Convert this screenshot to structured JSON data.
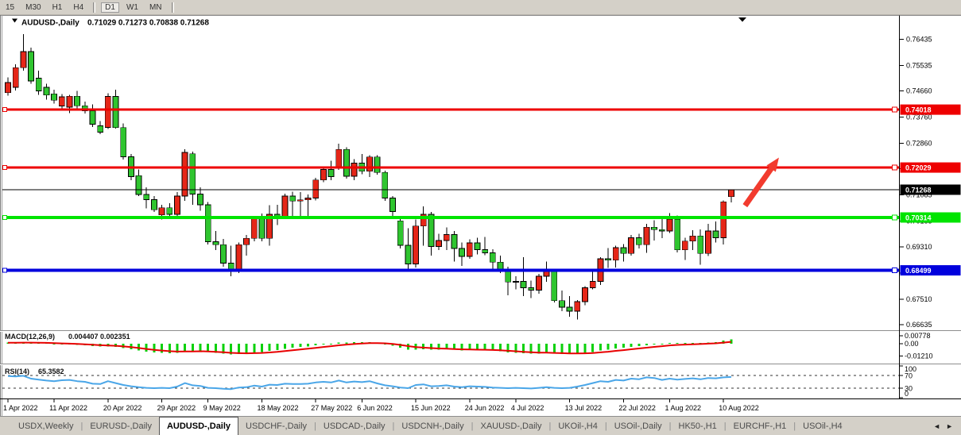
{
  "toolbar": {
    "timeframes": [
      {
        "label": "15",
        "active": false
      },
      {
        "label": "M30",
        "active": false
      },
      {
        "label": "H1",
        "active": false
      },
      {
        "label": "H4",
        "active": false
      },
      {
        "label": "D1",
        "active": true
      },
      {
        "label": "W1",
        "active": false
      },
      {
        "label": "MN",
        "active": false
      }
    ],
    "separators_after": [
      "H4",
      "MN"
    ]
  },
  "window": {
    "title_symbol": "AUDUSD-,Daily",
    "ohlc": "0.71029 0.71273 0.70838 0.71268"
  },
  "icons": {
    "chart_dropdown": "triangle-down",
    "autoscroll_marker": "triangle-down",
    "annotation": "arrow-up-right"
  },
  "chart_data": {
    "type": "candlestick",
    "symbol": "AUDUSD-",
    "timeframe": "Daily",
    "title": "AUDUSD-,Daily 0.71029 0.71273 0.70838 0.71268",
    "colors": {
      "bull": "#e52618",
      "bear": "#2fc52f",
      "wick": "#000000",
      "macd_hist": "#0bd10b",
      "macd_signal": "#e80000",
      "rsi_line": "#4aa6e8",
      "background": "#ffffff"
    },
    "y_axis": {
      "max": 0.7721,
      "min": 0.6647,
      "ticks": [
        0.76435,
        0.75535,
        0.7466,
        0.7376,
        0.7286,
        0.71985,
        0.71085,
        0.70185,
        0.6931,
        0.6841,
        0.6751,
        0.66635
      ]
    },
    "x_axis": {
      "tick_indices": [
        0,
        6,
        13,
        20,
        26,
        33,
        40,
        46,
        53,
        60,
        66,
        73,
        80,
        86,
        93
      ],
      "tick_labels": [
        "1 Apr 2022",
        "11 Apr 2022",
        "20 Apr 2022",
        "29 Apr 2022",
        "9 May 2022",
        "18 May 2022",
        "27 May 2022",
        "6 Jun 2022",
        "15 Jun 2022",
        "24 Jun 2022",
        "4 Jul 2022",
        "13 Jul 2022",
        "22 Jul 2022",
        "1 Aug 2022",
        "10 Aug 2022"
      ]
    },
    "hlines": [
      {
        "price": 0.74018,
        "label": "0.74018",
        "color": "#ee0000",
        "width": 3,
        "markers": true
      },
      {
        "price": 0.72029,
        "label": "0.72029",
        "color": "#ee0000",
        "width": 3,
        "markers": true
      },
      {
        "price": 0.71268,
        "label": "0.71268",
        "color": "#000000",
        "width": 1,
        "markers": false,
        "is_current_price": true
      },
      {
        "price": 0.70314,
        "label": "0.70314",
        "color": "#00e400",
        "width": 4,
        "markers": true
      },
      {
        "price": 0.68499,
        "label": "0.68499",
        "color": "#0000dd",
        "width": 4,
        "markers": true
      }
    ],
    "candles": [
      [
        0.746,
        0.7512,
        0.745,
        0.7495
      ],
      [
        0.7478,
        0.7558,
        0.7468,
        0.7546
      ],
      [
        0.7546,
        0.7661,
        0.7536,
        0.7601
      ],
      [
        0.7601,
        0.7615,
        0.749,
        0.75
      ],
      [
        0.751,
        0.7536,
        0.7452,
        0.7466
      ],
      [
        0.7478,
        0.749,
        0.7436,
        0.7452
      ],
      [
        0.7456,
        0.747,
        0.7423,
        0.7434
      ],
      [
        0.7414,
        0.7455,
        0.74,
        0.7446
      ],
      [
        0.741,
        0.7453,
        0.739,
        0.7448
      ],
      [
        0.7448,
        0.7466,
        0.7398,
        0.7415
      ],
      [
        0.7415,
        0.743,
        0.7388,
        0.7398
      ],
      [
        0.7398,
        0.742,
        0.7342,
        0.7352
      ],
      [
        0.7346,
        0.7362,
        0.7318,
        0.7324
      ],
      [
        0.7341,
        0.7458,
        0.7335,
        0.7447
      ],
      [
        0.7447,
        0.747,
        0.7336,
        0.734
      ],
      [
        0.734,
        0.7355,
        0.723,
        0.724
      ],
      [
        0.724,
        0.725,
        0.716,
        0.7172
      ],
      [
        0.7175,
        0.7196,
        0.7105,
        0.711
      ],
      [
        0.711,
        0.7135,
        0.7063,
        0.7093
      ],
      [
        0.7093,
        0.7105,
        0.705,
        0.7058
      ],
      [
        0.704,
        0.7075,
        0.7025,
        0.7065
      ],
      [
        0.7065,
        0.708,
        0.7028,
        0.7042
      ],
      [
        0.7042,
        0.7118,
        0.7035,
        0.7105
      ],
      [
        0.7105,
        0.7266,
        0.7088,
        0.7255
      ],
      [
        0.725,
        0.7258,
        0.7075,
        0.7112
      ],
      [
        0.7112,
        0.7135,
        0.7055,
        0.7075
      ],
      [
        0.7075,
        0.7085,
        0.6938,
        0.6948
      ],
      [
        0.6948,
        0.6985,
        0.692,
        0.6938
      ],
      [
        0.6938,
        0.6958,
        0.6862,
        0.6875
      ],
      [
        0.6875,
        0.6935,
        0.6829,
        0.6855
      ],
      [
        0.6855,
        0.6945,
        0.684,
        0.6938
      ],
      [
        0.6938,
        0.6972,
        0.69,
        0.696
      ],
      [
        0.696,
        0.7035,
        0.695,
        0.7028
      ],
      [
        0.7028,
        0.7045,
        0.695,
        0.696
      ],
      [
        0.696,
        0.7073,
        0.6934,
        0.7042
      ],
      [
        0.7042,
        0.7075,
        0.7005,
        0.7035
      ],
      [
        0.7035,
        0.7113,
        0.7028,
        0.7105
      ],
      [
        0.7105,
        0.712,
        0.7033,
        0.7088
      ],
      [
        0.7088,
        0.7118,
        0.7037,
        0.7092
      ],
      [
        0.7092,
        0.711,
        0.7035,
        0.7098
      ],
      [
        0.7098,
        0.7168,
        0.709,
        0.716
      ],
      [
        0.716,
        0.7205,
        0.7152,
        0.7196
      ],
      [
        0.7196,
        0.7226,
        0.716,
        0.7172
      ],
      [
        0.7203,
        0.7285,
        0.7195,
        0.7265
      ],
      [
        0.7265,
        0.7272,
        0.7165,
        0.7173
      ],
      [
        0.7173,
        0.7232,
        0.716,
        0.7218
      ],
      [
        0.7218,
        0.725,
        0.718,
        0.719
      ],
      [
        0.719,
        0.7246,
        0.717,
        0.7239
      ],
      [
        0.7239,
        0.7245,
        0.7178,
        0.7186
      ],
      [
        0.7186,
        0.7192,
        0.7088,
        0.7098
      ],
      [
        0.7098,
        0.7105,
        0.7035,
        0.7052
      ],
      [
        0.702,
        0.7035,
        0.6925,
        0.6936
      ],
      [
        0.6936,
        0.6995,
        0.685,
        0.6872
      ],
      [
        0.6872,
        0.7025,
        0.686,
        0.7002
      ],
      [
        0.7002,
        0.7069,
        0.6935,
        0.7042
      ],
      [
        0.7042,
        0.705,
        0.69,
        0.6932
      ],
      [
        0.6932,
        0.6975,
        0.692,
        0.6952
      ],
      [
        0.6952,
        0.6997,
        0.692,
        0.6973
      ],
      [
        0.6973,
        0.6985,
        0.688,
        0.6925
      ],
      [
        0.6925,
        0.6945,
        0.6865,
        0.6898
      ],
      [
        0.6898,
        0.6957,
        0.689,
        0.6944
      ],
      [
        0.6944,
        0.6962,
        0.6905,
        0.6921
      ],
      [
        0.6921,
        0.6965,
        0.6902,
        0.691
      ],
      [
        0.691,
        0.6922,
        0.685,
        0.6878
      ],
      [
        0.6878,
        0.69,
        0.6841,
        0.685
      ],
      [
        0.685,
        0.6862,
        0.6764,
        0.681
      ],
      [
        0.681,
        0.683,
        0.6785,
        0.6812
      ],
      [
        0.6812,
        0.6895,
        0.6762,
        0.679
      ],
      [
        0.679,
        0.6815,
        0.6755,
        0.6782
      ],
      [
        0.6782,
        0.6838,
        0.677,
        0.683
      ],
      [
        0.683,
        0.688,
        0.681,
        0.6848
      ],
      [
        0.6848,
        0.6852,
        0.674,
        0.6746
      ],
      [
        0.6746,
        0.678,
        0.671,
        0.6723
      ],
      [
        0.6723,
        0.6762,
        0.669,
        0.671
      ],
      [
        0.671,
        0.6748,
        0.6681,
        0.6742
      ],
      [
        0.6742,
        0.6795,
        0.673,
        0.679
      ],
      [
        0.679,
        0.685,
        0.6785,
        0.6812
      ],
      [
        0.6812,
        0.6895,
        0.68,
        0.689
      ],
      [
        0.689,
        0.6927,
        0.6858,
        0.6885
      ],
      [
        0.6885,
        0.6935,
        0.686,
        0.6928
      ],
      [
        0.6928,
        0.694,
        0.688,
        0.6908
      ],
      [
        0.6908,
        0.6972,
        0.69,
        0.6962
      ],
      [
        0.6962,
        0.6975,
        0.6925,
        0.6938
      ],
      [
        0.6938,
        0.701,
        0.691,
        0.6998
      ],
      [
        0.6998,
        0.7022,
        0.6952,
        0.699
      ],
      [
        0.699,
        0.7032,
        0.696,
        0.6985
      ],
      [
        0.6985,
        0.7047,
        0.6978,
        0.7025
      ],
      [
        0.7025,
        0.7038,
        0.6911,
        0.692
      ],
      [
        0.692,
        0.6962,
        0.6886,
        0.695
      ],
      [
        0.695,
        0.6988,
        0.692,
        0.6968
      ],
      [
        0.6968,
        0.699,
        0.6869,
        0.6908
      ],
      [
        0.6908,
        0.7009,
        0.6899,
        0.6985
      ],
      [
        0.6985,
        0.7018,
        0.6945,
        0.6962
      ],
      [
        0.6962,
        0.709,
        0.6938,
        0.7085
      ],
      [
        0.71029,
        0.71273,
        0.70838,
        0.71268
      ]
    ],
    "macd": {
      "name": "MACD(12,26,9)",
      "display": "0.004407 0.002351",
      "value": 0.004407,
      "signal_value": 0.002351,
      "axis_ticks": [
        0.00778,
        0.0,
        -0.0121
      ],
      "max": 0.0109,
      "min": -0.0179,
      "signal_smoothing": 0.25,
      "histogram": [
        0.001,
        0.0011,
        0.0013,
        0.0011,
        0.0007,
        0.0003,
        -0.0002,
        -0.0005,
        -0.0007,
        -0.001,
        -0.0017,
        -0.0023,
        -0.0028,
        -0.0026,
        -0.003,
        -0.0043,
        -0.0056,
        -0.0068,
        -0.0078,
        -0.0085,
        -0.0089,
        -0.0092,
        -0.0089,
        -0.0075,
        -0.0071,
        -0.0071,
        -0.0082,
        -0.0089,
        -0.0098,
        -0.0105,
        -0.0103,
        -0.0099,
        -0.0088,
        -0.0083,
        -0.0071,
        -0.0063,
        -0.0049,
        -0.004,
        -0.0033,
        -0.0026,
        -0.0016,
        -0.0005,
        -0.0001,
        0.001,
        0.0012,
        0.0014,
        0.0015,
        0.0017,
        0.001,
        -0.0004,
        -0.002,
        -0.004,
        -0.0058,
        -0.006,
        -0.0055,
        -0.0058,
        -0.0058,
        -0.0056,
        -0.006,
        -0.0065,
        -0.0063,
        -0.0062,
        -0.0063,
        -0.0068,
        -0.0074,
        -0.0084,
        -0.0088,
        -0.0094,
        -0.0098,
        -0.0096,
        -0.0092,
        -0.0096,
        -0.01,
        -0.0102,
        -0.0098,
        -0.009,
        -0.008,
        -0.0068,
        -0.0058,
        -0.0046,
        -0.004,
        -0.003,
        -0.0024,
        -0.0014,
        -0.0007,
        -0.0003,
        0.0006,
        0.0001,
        0.0002,
        0.0005,
        0.0002,
        0.0012,
        0.0015,
        0.003,
        0.0044
      ]
    },
    "rsi": {
      "name": "RSI(14)",
      "display": "65.3582",
      "value": 65.3582,
      "axis_ticks": [
        100,
        70,
        30,
        0
      ],
      "levels": [
        70,
        30
      ],
      "max": 100,
      "min": 0,
      "values": [
        68,
        67,
        69,
        60,
        57,
        54,
        52,
        55,
        56,
        52,
        50,
        44,
        43,
        52,
        46,
        40,
        36,
        33,
        31,
        30,
        31,
        30,
        35,
        46,
        39,
        37,
        31,
        30,
        28,
        27,
        32,
        33,
        38,
        35,
        41,
        40,
        44,
        43,
        43,
        44,
        48,
        50,
        48,
        54,
        48,
        51,
        49,
        52,
        45,
        39,
        36,
        32,
        30,
        40,
        42,
        36,
        37,
        39,
        35,
        33,
        36,
        35,
        34,
        32,
        31,
        30,
        31,
        30,
        29,
        31,
        33,
        31,
        30,
        31,
        35,
        40,
        46,
        52,
        50,
        56,
        54,
        60,
        58,
        64,
        62,
        56,
        60,
        57,
        59,
        61,
        58,
        62,
        61,
        64,
        65.36
      ]
    },
    "annotation_arrow": {
      "x_index_from": 95.8,
      "price_from": 0.7072,
      "x_index_to": 100.2,
      "price_to": 0.7237,
      "color": "#f23b2e"
    }
  },
  "tabs": {
    "items": [
      {
        "label": "USDX,Weekly",
        "active": false
      },
      {
        "label": "EURUSD-,Daily",
        "active": false
      },
      {
        "label": "AUDUSD-,Daily",
        "active": true
      },
      {
        "label": "USDCHF-,Daily",
        "active": false
      },
      {
        "label": "USDCAD-,Daily",
        "active": false
      },
      {
        "label": "USDCNH-,Daily",
        "active": false
      },
      {
        "label": "XAUUSD-,Daily",
        "active": false
      },
      {
        "label": "UKOil-,H4",
        "active": false
      },
      {
        "label": "USOil-,Daily",
        "active": false
      },
      {
        "label": "HK50-,H1",
        "active": false
      },
      {
        "label": "EURCHF-,H1",
        "active": false
      },
      {
        "label": "USOil-,H4",
        "active": false
      }
    ],
    "left_arrow": "◄",
    "right_arrow": "►"
  }
}
